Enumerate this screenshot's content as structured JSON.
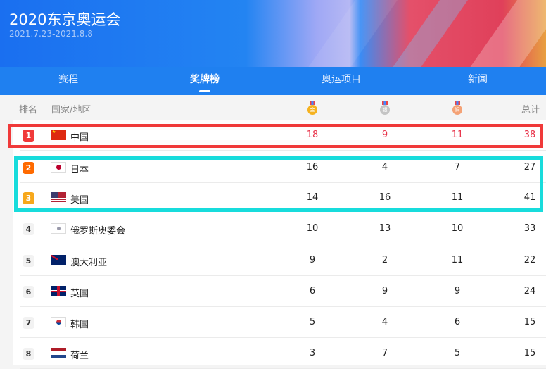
{
  "header": {
    "title": "2020东京奥运会",
    "dates": "2021.7.23-2021.8.8"
  },
  "tabs": [
    {
      "label": "赛程"
    },
    {
      "label": "奖牌榜",
      "active": true
    },
    {
      "label": "奥运项目"
    },
    {
      "label": "新闻"
    }
  ],
  "columns": {
    "rank": "排名",
    "country": "国家/地区",
    "gold_icon": "金",
    "silver_icon": "银",
    "bronze_icon": "铜",
    "total": "总计"
  },
  "colors": {
    "gold": "#f5b21f",
    "silver": "#c4c4c4",
    "bronze": "#f4a276",
    "rank1": "#f03a3a",
    "rank2": "#ff6a00",
    "rank3": "#f7a81b",
    "highlight_red": "#f03a3a",
    "highlight_cyan": "#18dcdc",
    "china_text": "#e8334a"
  },
  "rows": [
    {
      "rank": "1",
      "name": "中国",
      "flag": "cn",
      "gold": "18",
      "silver": "9",
      "bronze": "11",
      "total": "38"
    },
    {
      "rank": "2",
      "name": "日本",
      "flag": "jp",
      "gold": "16",
      "silver": "4",
      "bronze": "7",
      "total": "27"
    },
    {
      "rank": "3",
      "name": "美国",
      "flag": "us",
      "gold": "14",
      "silver": "16",
      "bronze": "11",
      "total": "41"
    },
    {
      "rank": "4",
      "name": "俄罗斯奥委会",
      "flag": "roc",
      "gold": "10",
      "silver": "13",
      "bronze": "10",
      "total": "33"
    },
    {
      "rank": "5",
      "name": "澳大利亚",
      "flag": "au",
      "gold": "9",
      "silver": "2",
      "bronze": "11",
      "total": "22"
    },
    {
      "rank": "6",
      "name": "英国",
      "flag": "gb",
      "gold": "6",
      "silver": "9",
      "bronze": "9",
      "total": "24"
    },
    {
      "rank": "7",
      "name": "韩国",
      "flag": "kr",
      "gold": "5",
      "silver": "4",
      "bronze": "6",
      "total": "15"
    },
    {
      "rank": "8",
      "name": "荷兰",
      "flag": "nl",
      "gold": "3",
      "silver": "7",
      "bronze": "5",
      "total": "15"
    }
  ]
}
